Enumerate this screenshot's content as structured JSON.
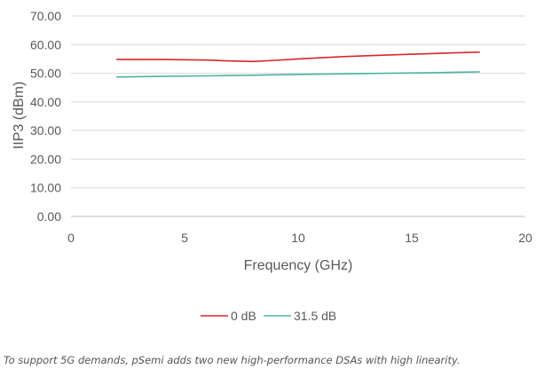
{
  "chart_data": {
    "type": "line",
    "xlabel": "Frequency (GHz)",
    "ylabel": "IIP3 (dBm)",
    "xlim": [
      0,
      20
    ],
    "ylim": [
      0,
      70
    ],
    "x_ticks": [
      "0",
      "5",
      "10",
      "15",
      "20"
    ],
    "y_ticks": [
      "0.00",
      "10.00",
      "20.00",
      "30.00",
      "40.00",
      "50.00",
      "60.00",
      "70.00"
    ],
    "grid": "horizontal",
    "legend_position": "bottom",
    "series": [
      {
        "name": "0 dB",
        "color": "#d62728",
        "x": [
          2,
          4,
          6,
          7,
          8,
          9,
          10,
          12,
          14,
          16,
          18
        ],
        "y": [
          54.8,
          54.8,
          54.6,
          54.3,
          54.1,
          54.5,
          55.0,
          55.8,
          56.4,
          56.9,
          57.4
        ]
      },
      {
        "name": "31.5 dB",
        "color": "#4bb3a8",
        "x": [
          2,
          4,
          6,
          8,
          10,
          12,
          14,
          16,
          18
        ],
        "y": [
          48.7,
          48.9,
          49.1,
          49.3,
          49.6,
          49.8,
          50.0,
          50.2,
          50.5
        ]
      }
    ]
  },
  "caption": "To support 5G demands, pSemi adds two new high-performance DSAs with high linearity."
}
